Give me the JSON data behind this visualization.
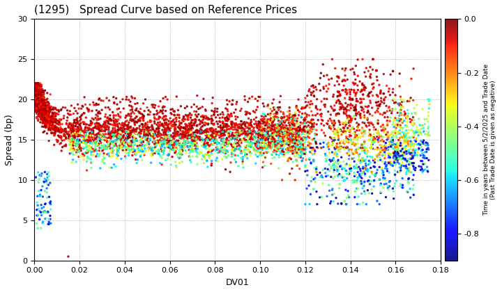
{
  "title": "(1295)   Spread Curve based on Reference Prices",
  "xlabel": "DV01",
  "ylabel": "Spread (bp)",
  "xlim": [
    0,
    0.18
  ],
  "ylim": [
    0,
    30
  ],
  "xticks": [
    0.0,
    0.02,
    0.04,
    0.06,
    0.08,
    0.1,
    0.12,
    0.14,
    0.16,
    0.18
  ],
  "yticks": [
    0,
    5,
    10,
    15,
    20,
    25,
    30
  ],
  "cbar_label_line1": "Time in years between 5/2/2025 and Trade Date",
  "cbar_label_line2": "(Past Trade Date is given as negative)",
  "cmap": "jet",
  "clim": [
    -0.9,
    0.0
  ],
  "cticks": [
    0.0,
    -0.2,
    -0.4,
    -0.6,
    -0.8
  ],
  "marker_size": 6,
  "seed": 42
}
